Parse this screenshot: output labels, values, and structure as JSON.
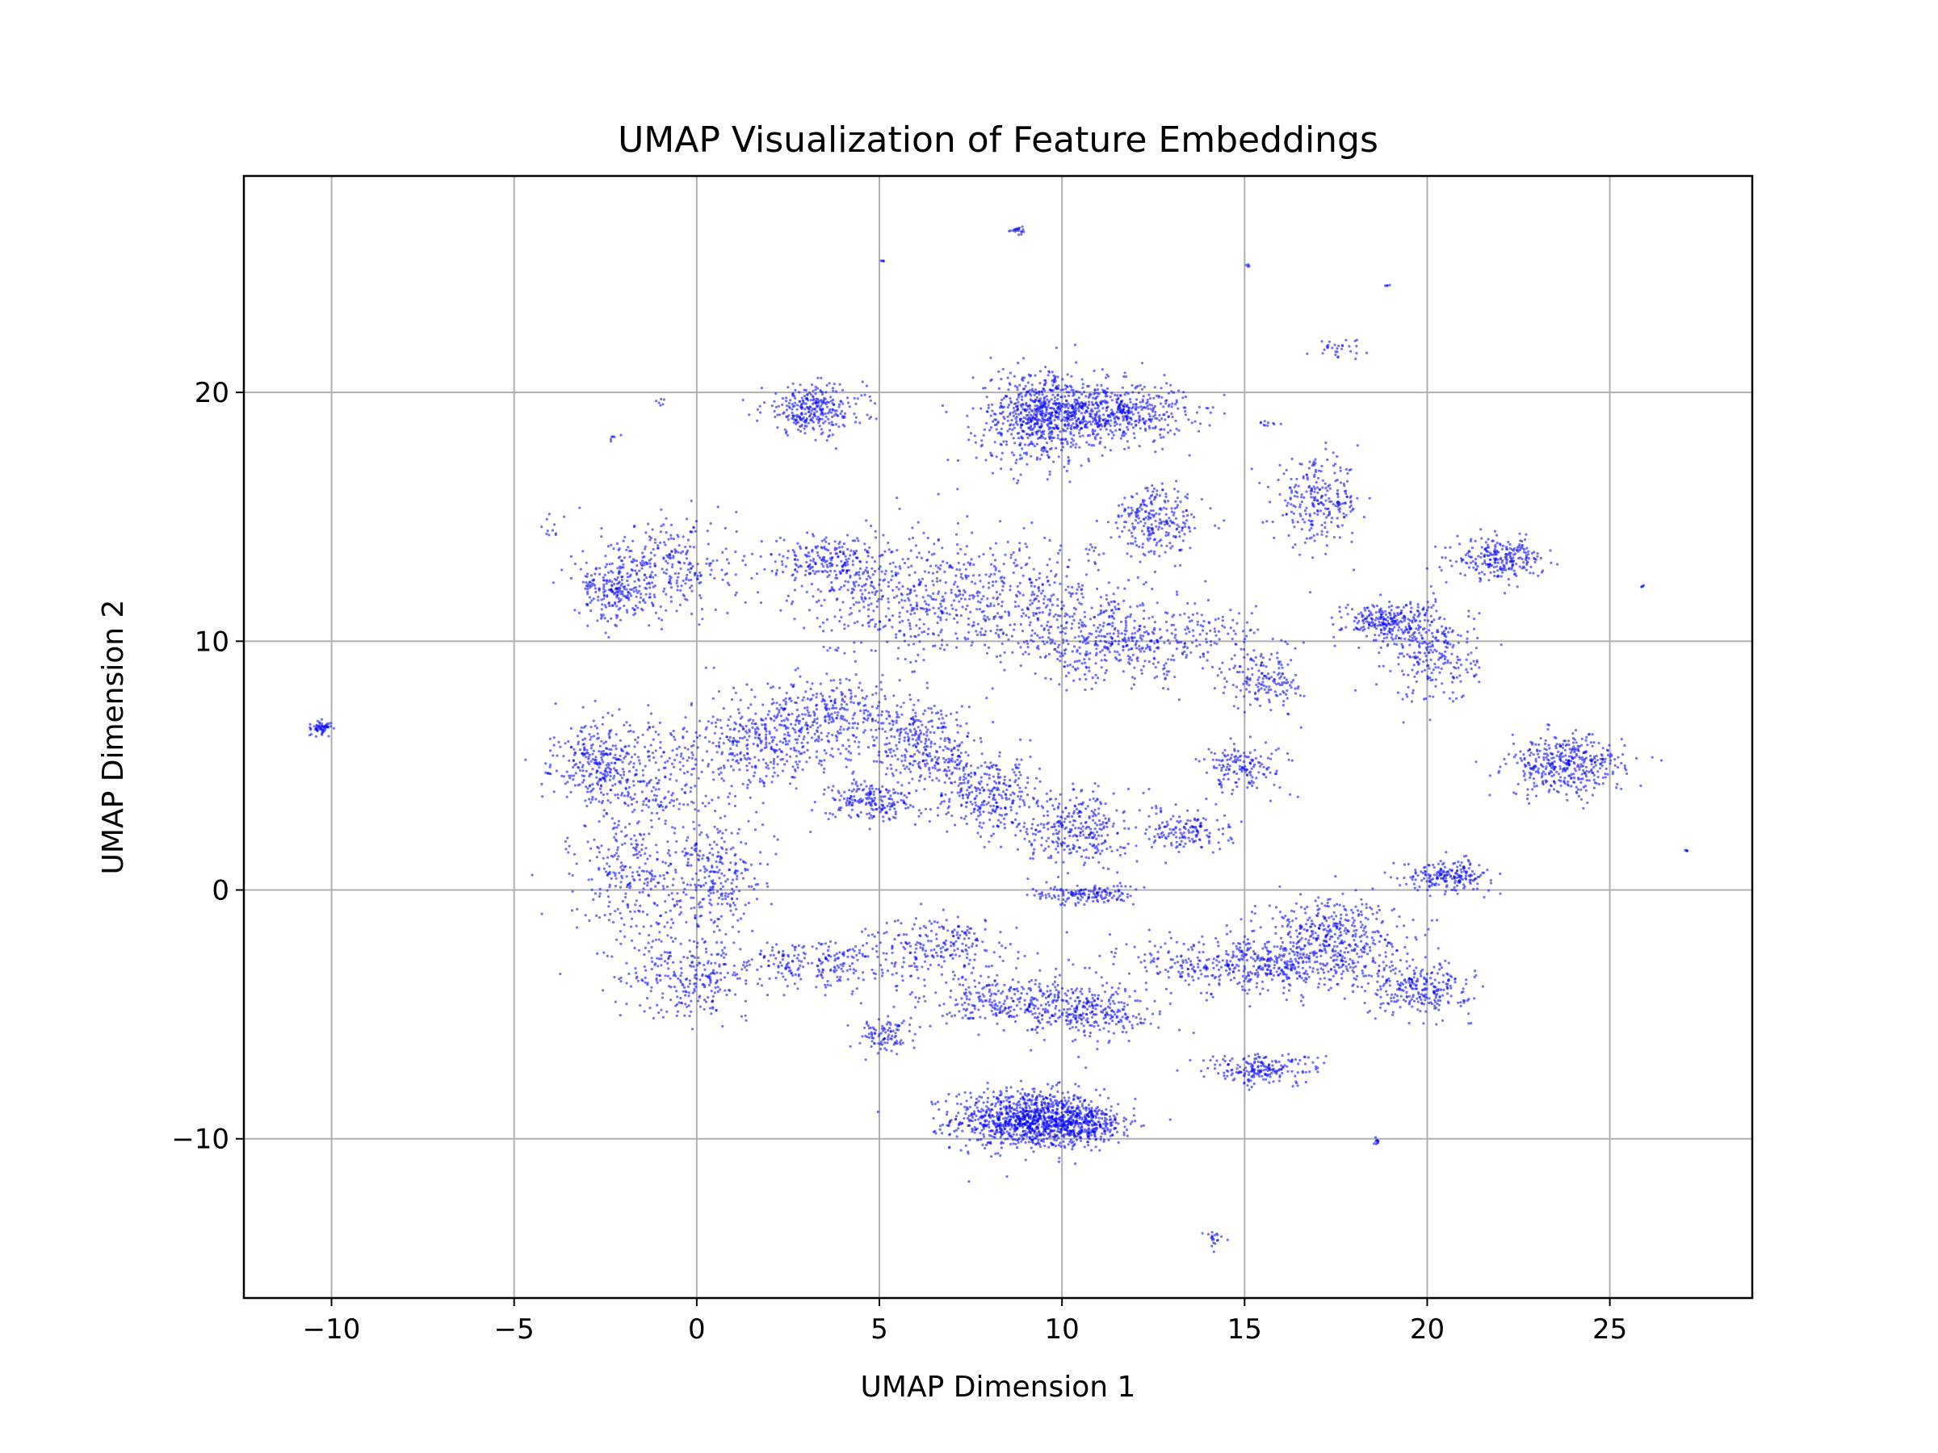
{
  "chart_data": {
    "type": "scatter",
    "title": "UMAP Visualization of Feature Embeddings",
    "xlabel": "UMAP Dimension 1",
    "ylabel": "UMAP Dimension 2",
    "xlim": [
      -12.4,
      28.9
    ],
    "ylim": [
      -16.4,
      28.7
    ],
    "xticks": [
      -10,
      -5,
      0,
      5,
      10,
      15,
      20,
      25
    ],
    "yticks": [
      -10,
      0,
      10,
      20
    ],
    "xtick_labels": [
      "−10",
      "−5",
      "0",
      "5",
      "10",
      "15",
      "20",
      "25"
    ],
    "ytick_labels": [
      "−10",
      "0",
      "10",
      "20"
    ],
    "grid": true,
    "point_color": "#0000ff",
    "series": [
      {
        "clusters": [
          {
            "cx": 9.0,
            "cy": -9.2,
            "sx": 1.0,
            "sy": 0.6,
            "n": 900
          },
          {
            "cx": 10.4,
            "cy": -9.4,
            "sx": 0.8,
            "sy": 0.4,
            "n": 400
          },
          {
            "cx": 11.0,
            "cy": 19.2,
            "sx": 1.2,
            "sy": 0.6,
            "n": 700
          },
          {
            "cx": 9.3,
            "cy": 19.0,
            "sx": 0.8,
            "sy": 1.0,
            "n": 500
          },
          {
            "cx": 3.2,
            "cy": 19.3,
            "sx": 0.7,
            "sy": 0.5,
            "n": 300
          },
          {
            "cx": 17.0,
            "cy": 15.6,
            "sx": 0.6,
            "sy": 0.8,
            "n": 250
          },
          {
            "cx": 22.0,
            "cy": 13.3,
            "sx": 0.6,
            "sy": 0.4,
            "n": 250
          },
          {
            "cx": 18.9,
            "cy": 10.8,
            "sx": 0.6,
            "sy": 0.4,
            "n": 250
          },
          {
            "cx": 20.2,
            "cy": 9.5,
            "sx": 0.6,
            "sy": 1.0,
            "n": 250
          },
          {
            "cx": 23.8,
            "cy": 5.0,
            "sx": 0.8,
            "sy": 0.6,
            "n": 400
          },
          {
            "cx": 20.6,
            "cy": 0.6,
            "sx": 0.6,
            "sy": 0.3,
            "n": 200
          },
          {
            "cx": 19.8,
            "cy": -4.0,
            "sx": 0.7,
            "sy": 0.5,
            "n": 250
          },
          {
            "cx": 15.3,
            "cy": -3.0,
            "sx": 1.6,
            "sy": 0.6,
            "n": 500
          },
          {
            "cx": 17.3,
            "cy": -1.8,
            "sx": 1.0,
            "sy": 0.8,
            "n": 400
          },
          {
            "cx": 15.5,
            "cy": -7.2,
            "sx": 0.8,
            "sy": 0.3,
            "n": 200
          },
          {
            "cx": 10.6,
            "cy": -0.2,
            "sx": 0.7,
            "sy": 0.2,
            "n": 150
          },
          {
            "cx": 6.3,
            "cy": 5.8,
            "sx": 0.7,
            "sy": 0.9,
            "n": 300
          },
          {
            "cx": 4.8,
            "cy": 3.6,
            "sx": 0.6,
            "sy": 0.4,
            "n": 200
          },
          {
            "cx": 8.0,
            "cy": 3.8,
            "sx": 0.7,
            "sy": 0.8,
            "n": 300
          },
          {
            "cx": 10.4,
            "cy": 2.5,
            "sx": 0.7,
            "sy": 0.8,
            "n": 300
          },
          {
            "cx": 13.4,
            "cy": 2.4,
            "sx": 0.6,
            "sy": 0.4,
            "n": 150
          },
          {
            "cx": 15.6,
            "cy": 8.4,
            "sx": 0.5,
            "sy": 0.6,
            "n": 150
          },
          {
            "cx": 15.0,
            "cy": 5.0,
            "sx": 0.6,
            "sy": 0.5,
            "n": 150
          },
          {
            "cx": 12.6,
            "cy": 14.8,
            "sx": 0.6,
            "sy": 0.7,
            "n": 250
          },
          {
            "cx": 11.8,
            "cy": 10.0,
            "sx": 1.8,
            "sy": 0.8,
            "n": 500
          },
          {
            "cx": 9.0,
            "cy": 11.5,
            "sx": 1.6,
            "sy": 1.2,
            "n": 400
          },
          {
            "cx": 5.5,
            "cy": 12.0,
            "sx": 1.4,
            "sy": 1.2,
            "n": 400
          },
          {
            "cx": 3.5,
            "cy": 13.2,
            "sx": 0.8,
            "sy": 0.5,
            "n": 200
          },
          {
            "cx": -0.8,
            "cy": 13.0,
            "sx": 1.0,
            "sy": 1.0,
            "n": 300
          },
          {
            "cx": -2.2,
            "cy": 12.0,
            "sx": 0.5,
            "sy": 0.6,
            "n": 200
          },
          {
            "cx": 1.8,
            "cy": 6.0,
            "sx": 1.0,
            "sy": 1.0,
            "n": 350
          },
          {
            "cx": 3.8,
            "cy": 7.0,
            "sx": 1.0,
            "sy": 0.8,
            "n": 300
          },
          {
            "cx": -2.7,
            "cy": 5.2,
            "sx": 0.6,
            "sy": 0.8,
            "n": 250
          },
          {
            "cx": -1.2,
            "cy": 4.5,
            "sx": 1.2,
            "sy": 1.0,
            "n": 250
          },
          {
            "cx": -1.7,
            "cy": 0.5,
            "sx": 0.8,
            "sy": 1.4,
            "n": 300
          },
          {
            "cx": 0.5,
            "cy": 0.5,
            "sx": 0.6,
            "sy": 1.2,
            "n": 250
          },
          {
            "cx": -0.2,
            "cy": -3.5,
            "sx": 0.9,
            "sy": 0.8,
            "n": 250
          },
          {
            "cx": 3.5,
            "cy": -3.0,
            "sx": 1.3,
            "sy": 0.5,
            "n": 250
          },
          {
            "cx": 8.5,
            "cy": -4.5,
            "sx": 1.2,
            "sy": 0.6,
            "n": 300
          },
          {
            "cx": 10.8,
            "cy": -5.0,
            "sx": 0.9,
            "sy": 0.5,
            "n": 250
          },
          {
            "cx": 6.8,
            "cy": -2.3,
            "sx": 0.9,
            "sy": 0.6,
            "n": 200
          },
          {
            "cx": 5.2,
            "cy": -5.8,
            "sx": 0.4,
            "sy": 0.4,
            "n": 100
          },
          {
            "cx": -10.3,
            "cy": 6.5,
            "sx": 0.15,
            "sy": 0.12,
            "n": 60
          },
          {
            "cx": 8.8,
            "cy": 26.5,
            "sx": 0.1,
            "sy": 0.1,
            "n": 20
          },
          {
            "cx": 17.6,
            "cy": 21.8,
            "sx": 0.4,
            "sy": 0.2,
            "n": 30
          },
          {
            "cx": 14.2,
            "cy": -14.0,
            "sx": 0.1,
            "sy": 0.2,
            "n": 20
          },
          {
            "cx": 18.6,
            "cy": -10.1,
            "sx": 0.05,
            "sy": 0.1,
            "n": 10
          },
          {
            "cx": 15.7,
            "cy": 18.8,
            "sx": 0.2,
            "sy": 0.1,
            "n": 10
          },
          {
            "cx": 27.1,
            "cy": 1.6,
            "sx": 0.03,
            "sy": 0.03,
            "n": 4
          },
          {
            "cx": 25.9,
            "cy": 12.2,
            "sx": 0.03,
            "sy": 0.03,
            "n": 4
          },
          {
            "cx": 18.9,
            "cy": 24.3,
            "sx": 0.03,
            "sy": 0.03,
            "n": 4
          },
          {
            "cx": 15.1,
            "cy": 25.1,
            "sx": 0.03,
            "sy": 0.03,
            "n": 4
          },
          {
            "cx": 5.1,
            "cy": 25.3,
            "sx": 0.03,
            "sy": 0.03,
            "n": 4
          },
          {
            "cx": -4.0,
            "cy": 14.5,
            "sx": 0.1,
            "sy": 0.4,
            "n": 10
          },
          {
            "cx": -2.3,
            "cy": 18.2,
            "sx": 0.1,
            "sy": 0.1,
            "n": 6
          },
          {
            "cx": -1.0,
            "cy": 19.6,
            "sx": 0.1,
            "sy": 0.1,
            "n": 6
          }
        ]
      }
    ]
  }
}
